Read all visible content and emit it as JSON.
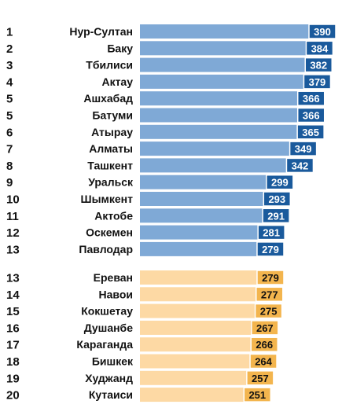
{
  "chart_data": {
    "type": "bar",
    "orientation": "horizontal",
    "xlim": [
      0,
      390
    ],
    "grid": false,
    "legend": "none",
    "groups": [
      {
        "bar_color": "#7fa9d6",
        "label_bg": "#1a5a9c",
        "label_fg": "#ffffff",
        "rows": [
          {
            "rank": "1",
            "city": "Нур-Султан",
            "value": 390
          },
          {
            "rank": "2",
            "city": "Баку",
            "value": 384
          },
          {
            "rank": "3",
            "city": "Тбилиси",
            "value": 382
          },
          {
            "rank": "4",
            "city": "Актау",
            "value": 379
          },
          {
            "rank": "5",
            "city": "Ашхабад",
            "value": 366
          },
          {
            "rank": "5",
            "city": "Батуми",
            "value": 366
          },
          {
            "rank": "6",
            "city": "Атырау",
            "value": 365
          },
          {
            "rank": "7",
            "city": "Алматы",
            "value": 349
          },
          {
            "rank": "8",
            "city": "Ташкент",
            "value": 342
          },
          {
            "rank": "9",
            "city": "Уральск",
            "value": 299
          },
          {
            "rank": "10",
            "city": "Шымкент",
            "value": 293
          },
          {
            "rank": "11",
            "city": "Актобе",
            "value": 291
          },
          {
            "rank": "12",
            "city": "Оскемен",
            "value": 281
          },
          {
            "rank": "13",
            "city": "Павлодар",
            "value": 279
          }
        ]
      },
      {
        "bar_color": "#fdd9a4",
        "label_bg": "#f3b54e",
        "label_fg": "#111111",
        "rows": [
          {
            "rank": "13",
            "city": "Ереван",
            "value": 279
          },
          {
            "rank": "14",
            "city": "Навои",
            "value": 277
          },
          {
            "rank": "15",
            "city": "Кокшетау",
            "value": 275
          },
          {
            "rank": "16",
            "city": "Душанбе",
            "value": 267
          },
          {
            "rank": "17",
            "city": "Караганда",
            "value": 266
          },
          {
            "rank": "18",
            "city": "Бишкек",
            "value": 264
          },
          {
            "rank": "19",
            "city": "Худжанд",
            "value": 257
          },
          {
            "rank": "20",
            "city": "Кутаиси",
            "value": 251
          }
        ]
      }
    ]
  }
}
